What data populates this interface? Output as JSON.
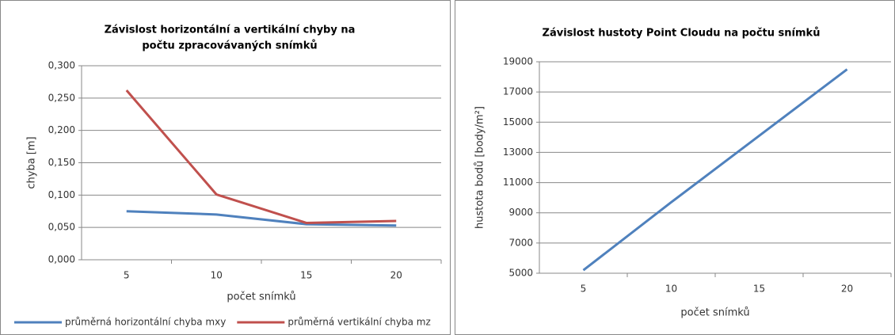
{
  "chart_data": [
    {
      "type": "line",
      "title": [
        "Závislost horizontální a vertikální chyby na",
        "počtu zpracovávaných snímků"
      ],
      "xlabel": "počet snímků",
      "ylabel": "chyba [m]",
      "categories": [
        "5",
        "10",
        "15",
        "20"
      ],
      "series": [
        {
          "name": "průměrná horizontální chyba mxy",
          "color": "#4f81bd",
          "values": [
            0.075,
            0.07,
            0.055,
            0.053
          ]
        },
        {
          "name": "průměrná vertikální chyba mz",
          "color": "#c0504d",
          "values": [
            0.262,
            0.101,
            0.057,
            0.06
          ]
        }
      ],
      "ylim": [
        0,
        0.3
      ],
      "yticks": [
        {
          "value": 0,
          "label": "0,000"
        },
        {
          "value": 0.05,
          "label": "0,050"
        },
        {
          "value": 0.1,
          "label": "0,100"
        },
        {
          "value": 0.15,
          "label": "0,150"
        },
        {
          "value": 0.2,
          "label": "0,200"
        },
        {
          "value": 0.25,
          "label": "0,250"
        },
        {
          "value": 0.3,
          "label": "0,300"
        }
      ],
      "grid": true,
      "legend": "bottom"
    },
    {
      "type": "line",
      "title": [
        "Závislost hustoty Point Cloudu na  počtu snímků"
      ],
      "xlabel": "počet snímků",
      "ylabel": "hustota bodů [body/m²]",
      "categories": [
        "5",
        "10",
        "15",
        "20"
      ],
      "series": [
        {
          "color": "#4f81bd",
          "values": [
            5200,
            9700,
            14100,
            18500
          ]
        }
      ],
      "ylim": [
        5000,
        19000
      ],
      "yticks": [
        5000,
        7000,
        9000,
        11000,
        13000,
        15000,
        17000,
        19000
      ],
      "grid": true
    }
  ]
}
